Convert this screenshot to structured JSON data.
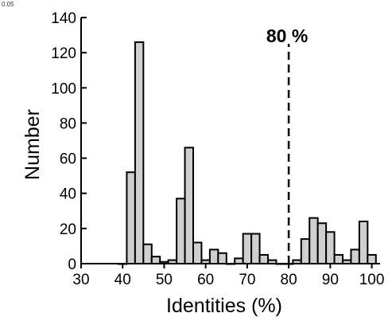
{
  "corner_label": "0.05",
  "chart_data": {
    "type": "bar",
    "title": "",
    "xlabel": "Identities (%)",
    "ylabel": "Number",
    "xlim": [
      30,
      102
    ],
    "ylim": [
      0,
      140
    ],
    "x_ticks": [
      30,
      40,
      50,
      60,
      70,
      80,
      90,
      100
    ],
    "y_ticks": [
      0,
      20,
      40,
      60,
      80,
      100,
      120,
      140
    ],
    "bin_width": 2,
    "x": [
      40,
      42,
      44,
      46,
      48,
      50,
      52,
      54,
      56,
      58,
      60,
      62,
      64,
      66,
      68,
      70,
      72,
      74,
      76,
      78,
      80,
      82,
      84,
      86,
      88,
      90,
      92,
      94,
      96,
      98,
      100
    ],
    "values": [
      0,
      52,
      126,
      11,
      4,
      1,
      2,
      37,
      66,
      12,
      2,
      8,
      6,
      0,
      3,
      17,
      17,
      5,
      2,
      0,
      0,
      2,
      14,
      26,
      23,
      18,
      5,
      2,
      8,
      24,
      5
    ],
    "bar_fill": "#cfcfcf",
    "bar_stroke": "#000000",
    "grid": false,
    "reference_line": {
      "x": 80,
      "style": "dashed",
      "label": "80 %"
    }
  }
}
